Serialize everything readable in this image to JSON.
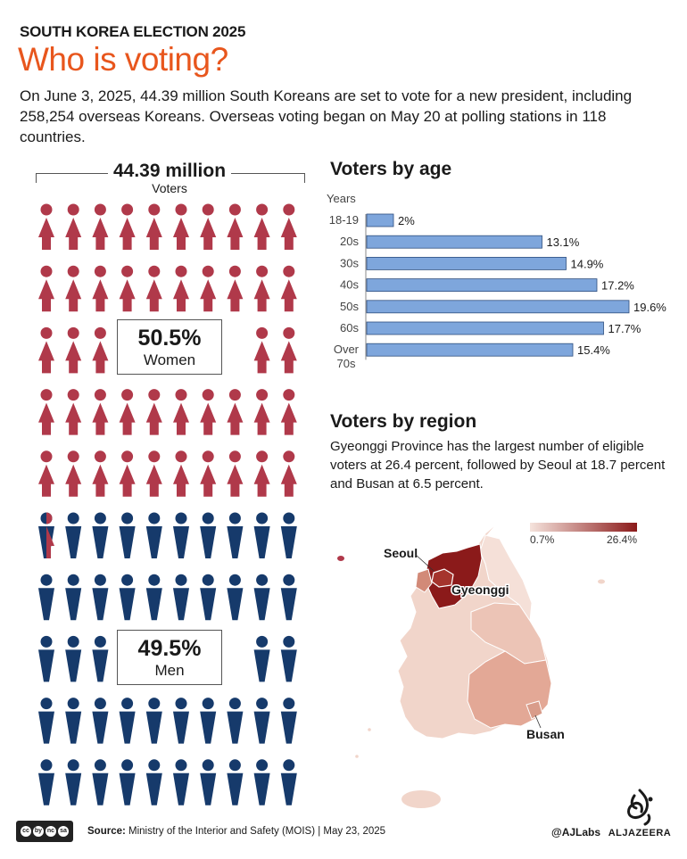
{
  "header": {
    "kicker": "SOUTH KOREA ELECTION 2025",
    "headline": "Who is voting?",
    "intro": "On June 3, 2025, 44.39 million South Koreans are set to vote for a new president, including 258,254 overseas Koreans. Overseas voting began on May 20 at polling stations in 118 countries."
  },
  "colors": {
    "accent": "#e8561d",
    "women": "#b0394a",
    "men": "#163a6b",
    "bar": "#7ea6dc",
    "map_low": "#f3dcd3",
    "map_high": "#8b1a1a"
  },
  "pictogram": {
    "total": "44.39 million",
    "unit": "Voters",
    "icons_total": 100,
    "women": {
      "pct_label": "50.5%",
      "label": "Women",
      "share": 0.505
    },
    "men": {
      "pct_label": "49.5%",
      "label": "Men",
      "share": 0.495
    }
  },
  "age_section": {
    "title": "Voters by age",
    "axis_label": "Years"
  },
  "region_section": {
    "title": "Voters by region",
    "description": "Gyeonggi Province has the largest number of eligible voters at 26.4 percent, followed by Seoul at 18.7 percent and Busan at 6.5 percent.",
    "legend_min": "0.7%",
    "legend_max": "26.4%",
    "labels": {
      "seoul": "Seoul",
      "gyeonggi": "Gyeonggi",
      "busan": "Busan"
    }
  },
  "chart_data": {
    "type": "bar",
    "title": "Voters by age",
    "ylabel": "Years",
    "categories": [
      "18-19",
      "20s",
      "30s",
      "40s",
      "50s",
      "60s",
      "Over 70s"
    ],
    "values": [
      2,
      13.1,
      14.9,
      17.2,
      19.6,
      17.7,
      15.4
    ],
    "value_labels": [
      "2%",
      "13.1%",
      "14.9%",
      "17.2%",
      "19.6%",
      "17.7%",
      "15.4%"
    ],
    "grid": false
  },
  "footer": {
    "source_label": "Source:",
    "source_text": "Ministry of the Interior and Safety (MOIS)  |  May 23, 2025",
    "handle": "@AJLabs",
    "logo_word": "ALJAZEERA",
    "license": [
      "cc",
      "by",
      "nc",
      "sa"
    ]
  }
}
